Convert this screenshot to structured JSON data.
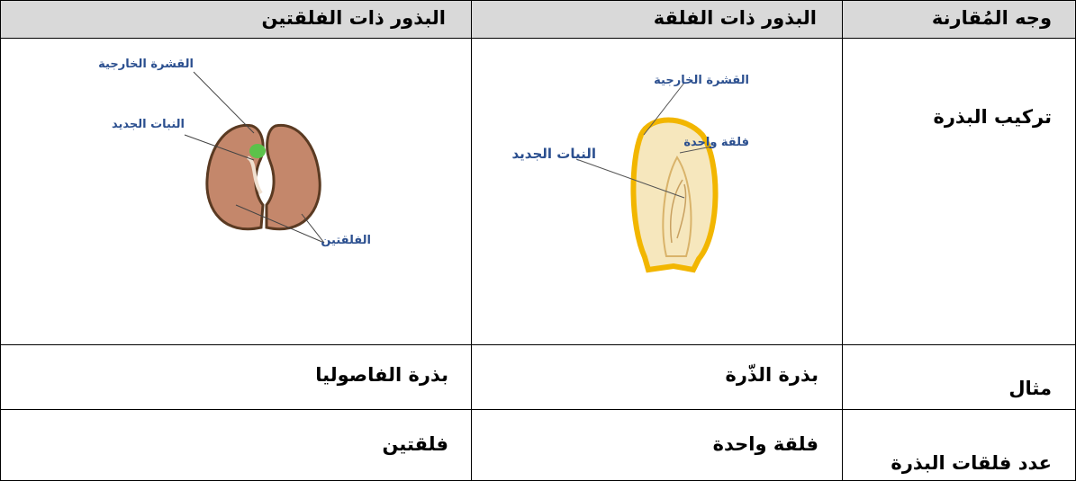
{
  "table": {
    "header": [
      "وجه المُقارنة",
      "البذور ذات الفلقة",
      "البذور ذات الفلقتين"
    ],
    "rows": [
      [
        "تركيب البذرة"
      ],
      [
        "مثال",
        "بذرة الذّرة",
        "بذرة الفاصوليا"
      ],
      [
        "عدد فلقات البذرة",
        "فلقة واحدة",
        "فلقتين"
      ]
    ]
  },
  "diagrams": {
    "corn": {
      "labels": [
        "القشرة الخارجية",
        "فلقة واحدة",
        "النبات الجديد"
      ]
    },
    "bean": {
      "labels": [
        "القشرة الخارجية",
        "النبات الجديد",
        "الفلقتين"
      ]
    }
  }
}
